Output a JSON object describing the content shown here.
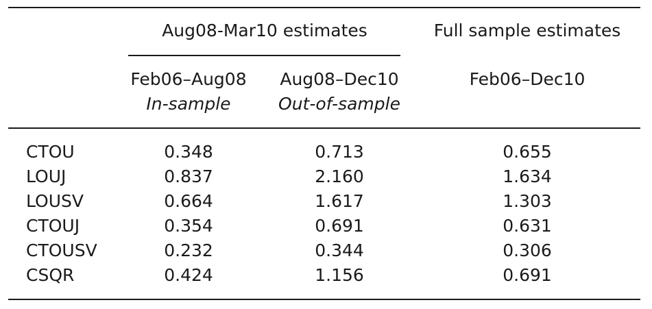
{
  "table": {
    "group_headers": {
      "aug08_mar10": "Aug08-Mar10 estimates",
      "full_sample": "Full sample estimates"
    },
    "columns": [
      {
        "period": "Feb06–Aug08",
        "subtitle": "In-sample"
      },
      {
        "period": "Aug08–Dec10",
        "subtitle": "Out-of-sample"
      },
      {
        "period": "Feb06–Dec10",
        "subtitle": ""
      }
    ],
    "rows": [
      {
        "label": "CTOU",
        "values": [
          "0.348",
          "0.713",
          "0.655"
        ]
      },
      {
        "label": "LOUJ",
        "values": [
          "0.837",
          "2.160",
          "1.634"
        ]
      },
      {
        "label": "LOUSV",
        "values": [
          "0.664",
          "1.617",
          "1.303"
        ]
      },
      {
        "label": "CTOUJ",
        "values": [
          "0.354",
          "0.691",
          "0.631"
        ]
      },
      {
        "label": "CTOUSV",
        "values": [
          "0.232",
          "0.344",
          "0.306"
        ]
      },
      {
        "label": "CSQR",
        "values": [
          "0.424",
          "1.156",
          "0.691"
        ]
      }
    ]
  }
}
